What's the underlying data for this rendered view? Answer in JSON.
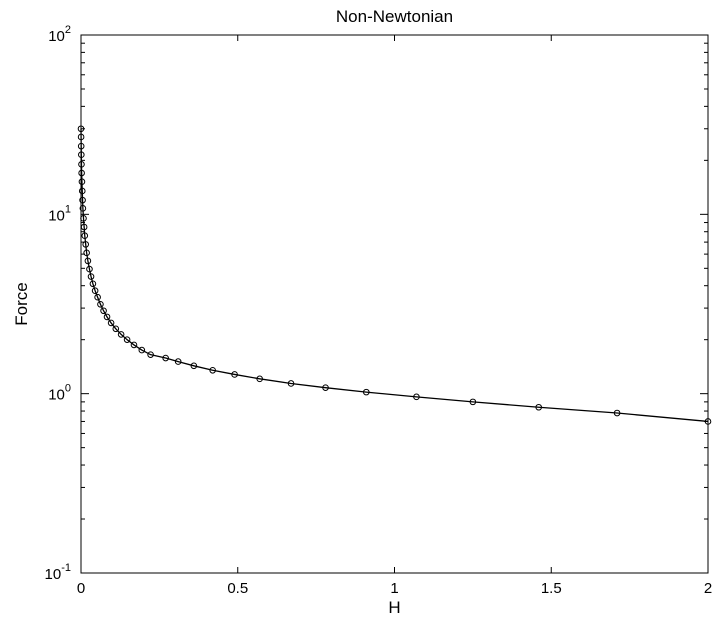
{
  "chart_data": {
    "type": "line",
    "title": "Non-Newtonian",
    "xlabel": "H",
    "ylabel": "Force",
    "xlim": [
      0,
      2
    ],
    "ylim": [
      0.1,
      100
    ],
    "yscale": "log",
    "grid": false,
    "legend": "none",
    "x_ticks": [
      {
        "value": 0,
        "label": "0"
      },
      {
        "value": 0.5,
        "label": "0.5"
      },
      {
        "value": 1,
        "label": "1"
      },
      {
        "value": 1.5,
        "label": "1.5"
      },
      {
        "value": 2,
        "label": "2"
      }
    ],
    "y_ticks": [
      {
        "value": 0.1,
        "base": "10",
        "exp": "-1"
      },
      {
        "value": 1,
        "base": "10",
        "exp": "0"
      },
      {
        "value": 10,
        "base": "10",
        "exp": "1"
      },
      {
        "value": 100,
        "base": "10",
        "exp": "2"
      }
    ],
    "series": [
      {
        "color": "#000000",
        "marker": "circle",
        "x": [
          0.0,
          0.0003,
          0.0006,
          0.001,
          0.0015,
          0.002,
          0.003,
          0.004,
          0.005,
          0.006,
          0.008,
          0.01,
          0.012,
          0.015,
          0.018,
          0.022,
          0.027,
          0.032,
          0.038,
          0.045,
          0.053,
          0.062,
          0.072,
          0.083,
          0.096,
          0.111,
          0.128,
          0.147,
          0.169,
          0.194,
          0.222,
          0.27,
          0.31,
          0.36,
          0.42,
          0.49,
          0.57,
          0.67,
          0.78,
          0.91,
          1.07,
          1.25,
          1.46,
          1.71,
          2.0
        ],
        "y": [
          30.0,
          27.0,
          24.0,
          21.5,
          19.0,
          17.0,
          15.2,
          13.5,
          12.0,
          10.8,
          9.5,
          8.5,
          7.6,
          6.8,
          6.1,
          5.5,
          4.95,
          4.5,
          4.1,
          3.75,
          3.45,
          3.15,
          2.9,
          2.68,
          2.48,
          2.3,
          2.14,
          2.0,
          1.87,
          1.75,
          1.65,
          1.58,
          1.51,
          1.43,
          1.35,
          1.28,
          1.21,
          1.14,
          1.08,
          1.02,
          0.96,
          0.9,
          0.84,
          0.78,
          0.7
        ]
      }
    ]
  }
}
